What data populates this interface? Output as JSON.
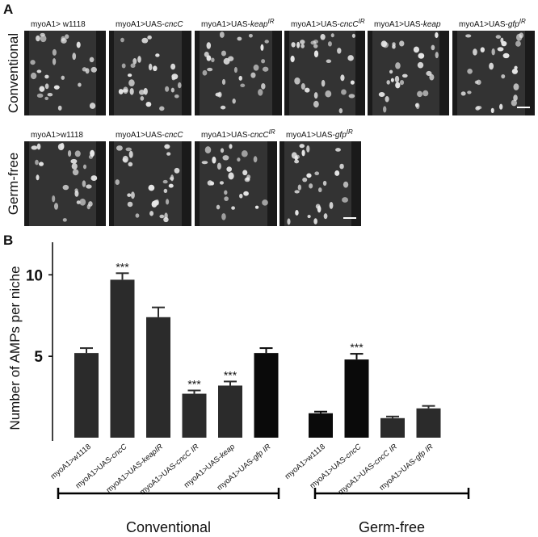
{
  "panel_labels": [
    "A",
    "B"
  ],
  "panel_a": {
    "rows": [
      {
        "condition": "Conventional",
        "images": [
          {
            "text": "myoA1> w1118"
          },
          {
            "text": "myoA1>UAS-",
            "gene": "cncC"
          },
          {
            "text": "myoA1>UAS-",
            "gene": "keap",
            "sup": "IR"
          },
          {
            "text": "myoA1>UAS-",
            "gene": "cncC",
            "sup": "IR"
          },
          {
            "text": "myoA1>UAS-",
            "gene": "keap"
          },
          {
            "text": "myoA1>UAS-",
            "gene": "gfp",
            "sup": "IR"
          }
        ]
      },
      {
        "condition": "Germ-free",
        "images": [
          {
            "text": "myoA1>w1118"
          },
          {
            "text": "myoA1>UAS-",
            "gene": "cncC"
          },
          {
            "text": "myoA1>UAS-",
            "gene": "cncC",
            "sup": "IR"
          },
          {
            "text": "myoA1>UAS-",
            "gene": "gfp",
            "sup": "IR"
          }
        ]
      }
    ]
  },
  "chart_data": {
    "type": "bar",
    "y_label": "Number of AMPs per niche",
    "ylim": [
      0,
      12
    ],
    "yticks": [
      5,
      10
    ],
    "groups": [
      {
        "name": "Conventional",
        "categories": [
          {
            "text": "myoA1>w1118"
          },
          {
            "text": "myoA1>UAS-",
            "gene": "cncC"
          },
          {
            "text": "myoA1>UAS-",
            "gene": "keapIR"
          },
          {
            "text": "myoA1>UAS-",
            "gene": "cncC IR"
          },
          {
            "text": "myoA1>UAS-",
            "gene": "keap"
          },
          {
            "text": "myoA1>UAS-",
            "gene": "gfp IR"
          }
        ],
        "values": [
          5.2,
          9.7,
          7.4,
          2.7,
          3.2,
          5.2
        ],
        "errors": [
          0.3,
          0.4,
          0.6,
          0.2,
          0.25,
          0.3
        ],
        "colors": [
          "#2b2b2b",
          "#2b2b2b",
          "#2b2b2b",
          "#2b2b2b",
          "#2b2b2b",
          "#0a0a0a"
        ],
        "significance": [
          null,
          "***",
          null,
          "***",
          "***",
          null
        ]
      },
      {
        "name": "Germ-free",
        "categories": [
          {
            "text": "myoA1>w1118"
          },
          {
            "text": "myoA1>UAS-",
            "gene": "cncC"
          },
          {
            "text": "myoA1>UAS-",
            "gene": "cncC IR"
          },
          {
            "text": "myoA1>UAS-",
            "gene": "gfp IR"
          }
        ],
        "values": [
          1.5,
          4.8,
          1.2,
          1.8
        ],
        "errors": [
          0.1,
          0.35,
          0.1,
          0.15
        ],
        "colors": [
          "#0a0a0a",
          "#0a0a0a",
          "#2b2b2b",
          "#2b2b2b"
        ],
        "significance": [
          null,
          "***",
          null,
          null
        ]
      }
    ]
  }
}
